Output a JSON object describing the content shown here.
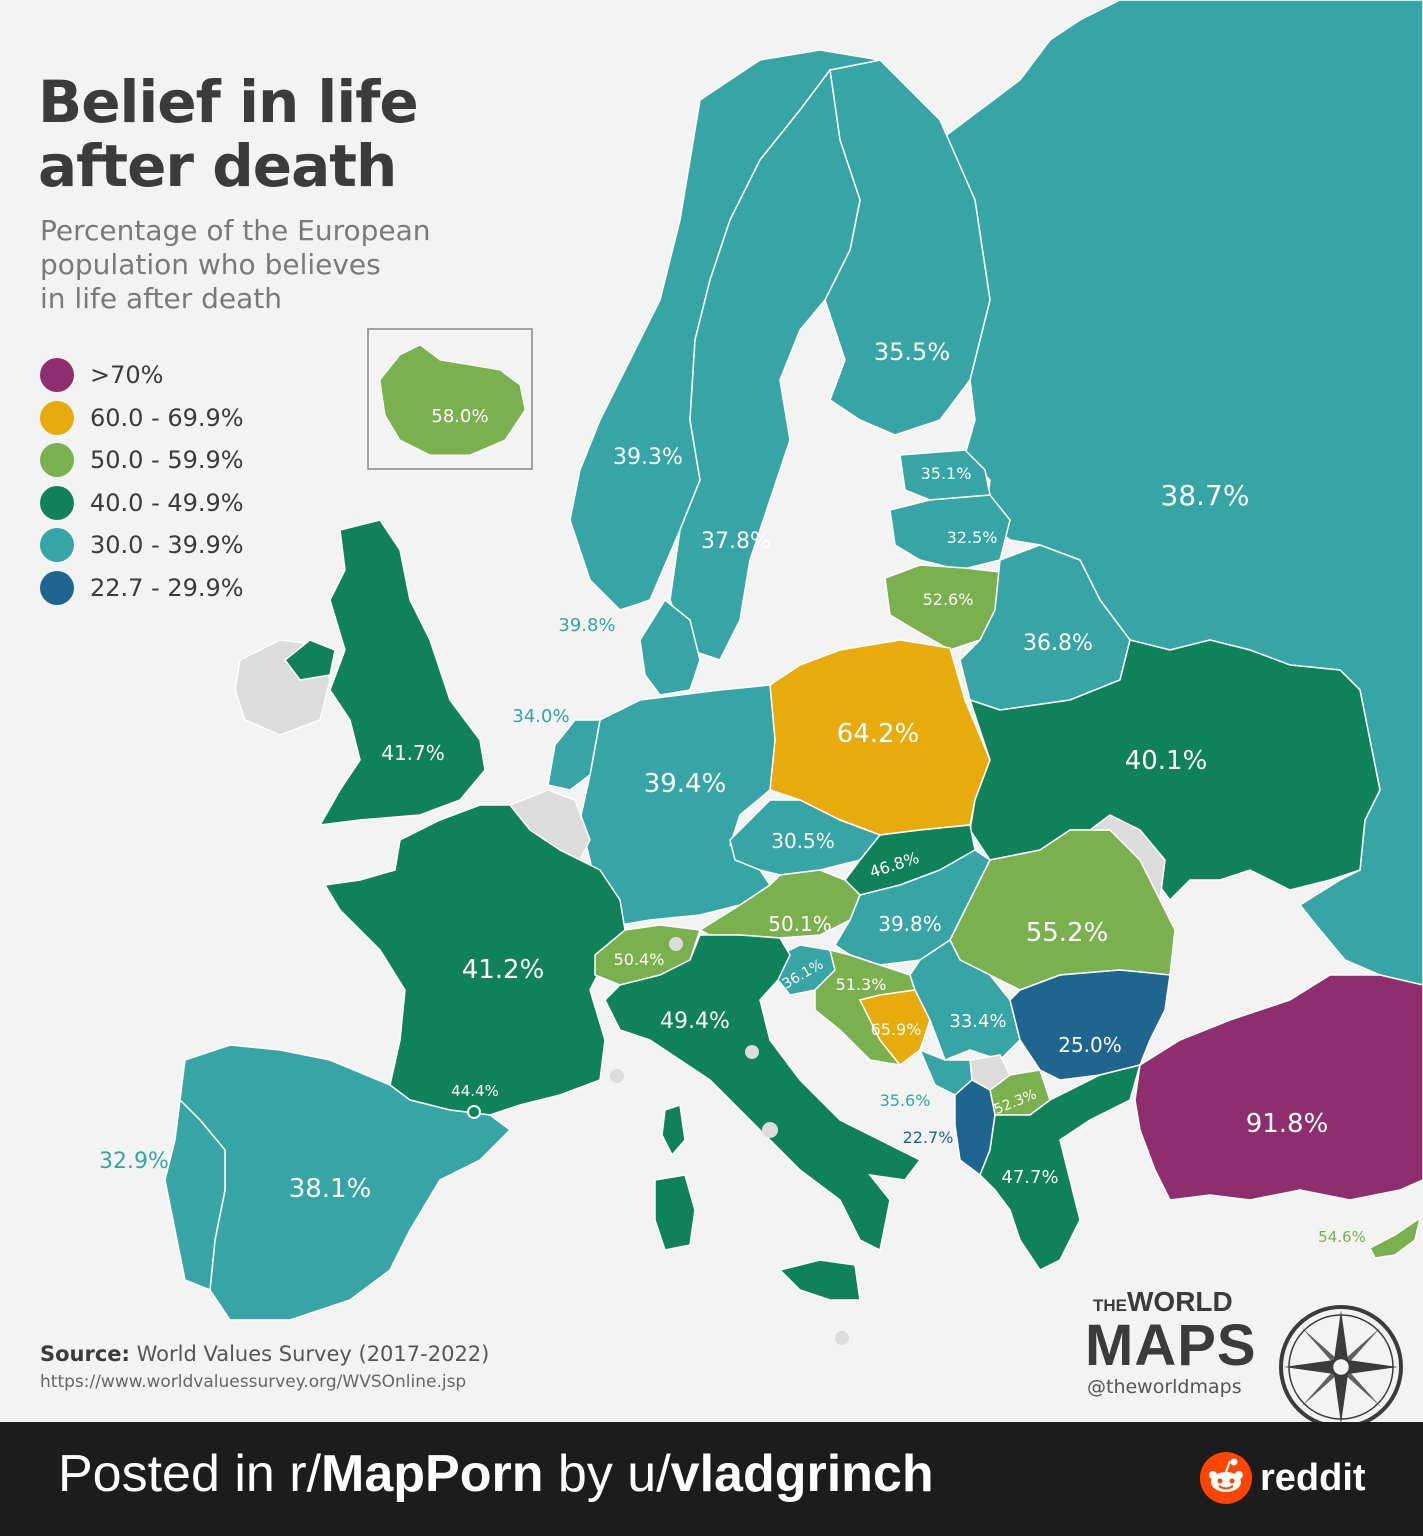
{
  "header": {
    "title_line1": "Belief in life",
    "title_line2": "after death",
    "subtitle_line1": "Percentage of the European",
    "subtitle_line2": "population who believes",
    "subtitle_line3": "in life after death"
  },
  "legend": [
    {
      "label": ">70%",
      "color": "#8e2e6f"
    },
    {
      "label": "60.0 - 69.9%",
      "color": "#e8ab0c"
    },
    {
      "label": "50.0 - 59.9%",
      "color": "#7ab04e"
    },
    {
      "label": "40.0 - 49.9%",
      "color": "#10825a"
    },
    {
      "label": "30.0 - 39.9%",
      "color": "#37a5a5"
    },
    {
      "label": "22.7 - 29.9%",
      "color": "#1e6590"
    }
  ],
  "colors": {
    "no_data": "#dcdcdc",
    "sea": "#f3f3f3",
    "border": "#ffffff"
  },
  "map_values": {
    "russia": "38.7%",
    "finland": "35.5%",
    "sweden": "37.8%",
    "norway": "39.3%",
    "denmark": "39.8%",
    "estonia": "35.1%",
    "latvia": "32.5%",
    "lithuania": "52.6%",
    "belarus": "36.8%",
    "poland": "64.2%",
    "ukraine": "40.1%",
    "germany": "39.4%",
    "netherlands": "34.0%",
    "uk": "41.7%",
    "iceland": "58.0%",
    "czechia": "30.5%",
    "slovakia": "46.8%",
    "austria": "50.1%",
    "hungary": "39.8%",
    "romania": "55.2%",
    "switzerland": "50.4%",
    "slovenia": "36.1%",
    "croatia": "51.3%",
    "bosnia": "65.9%",
    "serbia": "33.4%",
    "bulgaria": "25.0%",
    "montenegro": "35.6%",
    "albania": "22.7%",
    "north_macedonia": "52.3%",
    "greece": "47.7%",
    "turkey": "91.8%",
    "cyprus": "54.6%",
    "france": "41.2%",
    "andorra": "44.4%",
    "italy": "49.4%",
    "spain": "38.1%",
    "portugal": "32.9%"
  },
  "source": {
    "label": "Source:",
    "text": "World Values Survey (2017-2022)",
    "url": "https://www.worldvaluessurvey.org/WVSOnline.jsp"
  },
  "logo": {
    "the": "THE",
    "world": "WORLD",
    "maps": "MAPS",
    "handle": "@theworldmaps"
  },
  "footer": {
    "posted_in": "Posted in r/",
    "subreddit": "MapPorn",
    "by": " by u/",
    "user": "vladgrinch",
    "brand": "reddit"
  }
}
